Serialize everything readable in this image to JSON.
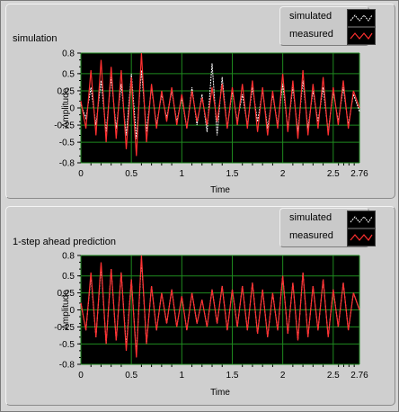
{
  "charts": [
    {
      "title": "simulation",
      "legend": {
        "simulated": "simulated",
        "measured": "measured"
      }
    },
    {
      "title": "1-step ahead prediction",
      "legend": {
        "simulated": "simulated",
        "measured": "measured"
      }
    }
  ],
  "colors": {
    "plot_background": "#000000",
    "grid": "#1f8a1f",
    "simulated": "#ffffff",
    "measured": "#ff3030"
  },
  "chart_data": [
    {
      "type": "line",
      "title": "simulation",
      "xlabel": "Time",
      "ylabel": "Amplitude",
      "xlim": [
        0,
        2.76
      ],
      "ylim": [
        -0.8,
        0.8
      ],
      "x_ticks": [
        "0",
        "0.5",
        "1",
        "1.5",
        "2",
        "2.5",
        "2.76"
      ],
      "y_ticks": [
        "0.8",
        "0.5",
        "0.25",
        "0",
        "-0.25",
        "-0.5",
        "-0.8"
      ],
      "grid": true,
      "legend_position": "top-right",
      "series": [
        {
          "name": "simulated",
          "x": [
            0,
            0.05,
            0.1,
            0.15,
            0.2,
            0.25,
            0.3,
            0.35,
            0.4,
            0.45,
            0.5,
            0.55,
            0.6,
            0.65,
            0.7,
            0.75,
            0.8,
            0.85,
            0.9,
            0.95,
            1.0,
            1.05,
            1.1,
            1.15,
            1.2,
            1.25,
            1.3,
            1.35,
            1.4,
            1.45,
            1.5,
            1.55,
            1.6,
            1.65,
            1.7,
            1.75,
            1.8,
            1.85,
            1.9,
            1.95,
            2.0,
            2.05,
            2.1,
            2.15,
            2.2,
            2.25,
            2.3,
            2.35,
            2.4,
            2.45,
            2.5,
            2.55,
            2.6,
            2.65,
            2.7,
            2.76
          ],
          "y": [
            0.05,
            -0.15,
            0.3,
            -0.25,
            0.4,
            -0.35,
            0.45,
            -0.3,
            0.35,
            -0.4,
            0.5,
            -0.45,
            0.55,
            -0.35,
            0.3,
            -0.25,
            0.2,
            -0.15,
            0.25,
            -0.2,
            0.15,
            -0.3,
            0.3,
            -0.25,
            0.2,
            -0.35,
            0.65,
            -0.4,
            0.45,
            -0.3,
            0.25,
            -0.2,
            0.2,
            -0.25,
            0.3,
            -0.2,
            0.25,
            -0.3,
            0.2,
            -0.25,
            0.35,
            -0.3,
            0.3,
            -0.35,
            0.4,
            -0.3,
            0.25,
            -0.2,
            0.3,
            -0.35,
            0.25,
            -0.2,
            0.3,
            -0.25,
            0.2,
            -0.05
          ]
        },
        {
          "name": "measured",
          "x": [
            0,
            0.05,
            0.1,
            0.15,
            0.2,
            0.25,
            0.3,
            0.35,
            0.4,
            0.45,
            0.5,
            0.55,
            0.6,
            0.65,
            0.7,
            0.75,
            0.8,
            0.85,
            0.9,
            0.95,
            1.0,
            1.05,
            1.1,
            1.15,
            1.2,
            1.25,
            1.3,
            1.35,
            1.4,
            1.45,
            1.5,
            1.55,
            1.6,
            1.65,
            1.7,
            1.75,
            1.8,
            1.85,
            1.9,
            1.95,
            2.0,
            2.05,
            2.1,
            2.15,
            2.2,
            2.25,
            2.3,
            2.35,
            2.4,
            2.45,
            2.5,
            2.55,
            2.6,
            2.65,
            2.7,
            2.76
          ],
          "y": [
            0.1,
            -0.3,
            0.55,
            -0.4,
            0.7,
            -0.5,
            0.6,
            -0.45,
            0.55,
            -0.6,
            0.45,
            -0.7,
            0.8,
            -0.5,
            0.35,
            -0.3,
            0.25,
            -0.2,
            0.3,
            -0.25,
            0.2,
            -0.3,
            0.25,
            -0.2,
            0.15,
            -0.25,
            0.3,
            -0.2,
            0.35,
            -0.3,
            0.3,
            -0.25,
            0.35,
            -0.3,
            0.4,
            -0.35,
            0.3,
            -0.4,
            0.25,
            -0.3,
            0.5,
            -0.35,
            0.4,
            -0.45,
            0.55,
            -0.4,
            0.35,
            -0.3,
            0.45,
            -0.4,
            0.3,
            -0.25,
            0.4,
            -0.3,
            0.25,
            0.0
          ]
        }
      ]
    },
    {
      "type": "line",
      "title": "1-step ahead prediction",
      "xlabel": "Time",
      "ylabel": "Amplitude",
      "xlim": [
        0,
        2.76
      ],
      "ylim": [
        -0.8,
        0.8
      ],
      "x_ticks": [
        "0",
        "0.5",
        "1",
        "1.5",
        "2",
        "2.5",
        "2.76"
      ],
      "y_ticks": [
        "0.8",
        "0.5",
        "0.25",
        "0",
        "-0.25",
        "-0.5",
        "-0.8"
      ],
      "grid": true,
      "legend_position": "top-right",
      "series": [
        {
          "name": "simulated",
          "x": [
            0,
            0.05,
            0.1,
            0.15,
            0.2,
            0.25,
            0.3,
            0.35,
            0.4,
            0.45,
            0.5,
            0.55,
            0.6,
            0.65,
            0.7,
            0.75,
            0.8,
            0.85,
            0.9,
            0.95,
            1.0,
            1.05,
            1.1,
            1.15,
            1.2,
            1.25,
            1.3,
            1.35,
            1.4,
            1.45,
            1.5,
            1.55,
            1.6,
            1.65,
            1.7,
            1.75,
            1.8,
            1.85,
            1.9,
            1.95,
            2.0,
            2.05,
            2.1,
            2.15,
            2.2,
            2.25,
            2.3,
            2.35,
            2.4,
            2.45,
            2.5,
            2.55,
            2.6,
            2.65,
            2.7,
            2.76
          ],
          "y": [
            0.1,
            -0.3,
            0.5,
            -0.4,
            0.65,
            -0.5,
            0.6,
            -0.45,
            0.55,
            -0.55,
            0.45,
            -0.65,
            0.75,
            -0.5,
            0.35,
            -0.3,
            0.25,
            -0.2,
            0.3,
            -0.25,
            0.2,
            -0.3,
            0.25,
            -0.2,
            0.15,
            -0.25,
            0.3,
            -0.2,
            0.35,
            -0.3,
            0.3,
            -0.25,
            0.35,
            -0.3,
            0.4,
            -0.35,
            0.3,
            -0.4,
            0.25,
            -0.3,
            0.5,
            -0.35,
            0.4,
            -0.45,
            0.55,
            -0.4,
            0.35,
            -0.3,
            0.45,
            -0.4,
            0.3,
            -0.25,
            0.4,
            -0.3,
            0.25,
            0.0
          ]
        },
        {
          "name": "measured",
          "x": [
            0,
            0.05,
            0.1,
            0.15,
            0.2,
            0.25,
            0.3,
            0.35,
            0.4,
            0.45,
            0.5,
            0.55,
            0.6,
            0.65,
            0.7,
            0.75,
            0.8,
            0.85,
            0.9,
            0.95,
            1.0,
            1.05,
            1.1,
            1.15,
            1.2,
            1.25,
            1.3,
            1.35,
            1.4,
            1.45,
            1.5,
            1.55,
            1.6,
            1.65,
            1.7,
            1.75,
            1.8,
            1.85,
            1.9,
            1.95,
            2.0,
            2.05,
            2.1,
            2.15,
            2.2,
            2.25,
            2.3,
            2.35,
            2.4,
            2.45,
            2.5,
            2.55,
            2.6,
            2.65,
            2.7,
            2.76
          ],
          "y": [
            0.1,
            -0.3,
            0.55,
            -0.4,
            0.7,
            -0.5,
            0.6,
            -0.45,
            0.55,
            -0.6,
            0.45,
            -0.7,
            0.8,
            -0.5,
            0.35,
            -0.3,
            0.25,
            -0.2,
            0.3,
            -0.25,
            0.2,
            -0.3,
            0.25,
            -0.2,
            0.15,
            -0.25,
            0.3,
            -0.2,
            0.35,
            -0.3,
            0.3,
            -0.25,
            0.35,
            -0.3,
            0.4,
            -0.35,
            0.3,
            -0.4,
            0.25,
            -0.3,
            0.5,
            -0.35,
            0.4,
            -0.45,
            0.55,
            -0.4,
            0.35,
            -0.3,
            0.45,
            -0.4,
            0.3,
            -0.25,
            0.4,
            -0.3,
            0.25,
            0.0
          ]
        }
      ]
    }
  ]
}
